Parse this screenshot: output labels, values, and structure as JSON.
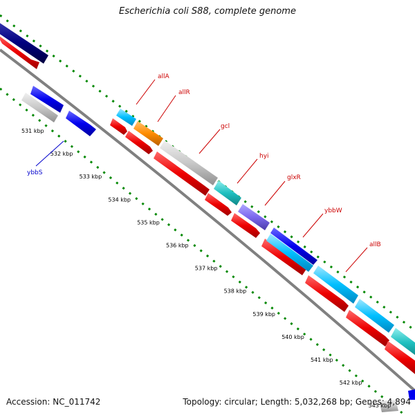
{
  "title": "Escherichia coli S88, complete genome",
  "accession": "Accession: NC_011742",
  "summary": "Topology: circular; Length: 5,032,268 bp; Genes: 4,894",
  "colors": {
    "cds_reverse": "#ee0000",
    "cds_navy": "#000080",
    "cds_blue": "#0000ee",
    "cds_lightblue": "#00bfff",
    "cds_orange": "#ff8c00",
    "cds_grey": "#bdbdbd",
    "cds_teal": "#20c0c0",
    "cds_purple": "#7b68ee",
    "backbone": "#808080",
    "gc_ticks": "#008800",
    "label_red": "#cc0000",
    "label_blue": "#0000cc"
  },
  "kbp_ticks": [
    "531 kbp",
    "532 kbp",
    "533 kbp",
    "534 kbp",
    "535 kbp",
    "536 kbp",
    "537 kbp",
    "538 kbp",
    "539 kbp",
    "540 kbp",
    "541 kbp",
    "542 kbp",
    "543 kbp"
  ],
  "gene_labels": [
    {
      "name": "allA",
      "color": "#cc0000"
    },
    {
      "name": "allR",
      "color": "#cc0000"
    },
    {
      "name": "gcl",
      "color": "#cc0000"
    },
    {
      "name": "hyi",
      "color": "#cc0000"
    },
    {
      "name": "glxR",
      "color": "#cc0000"
    },
    {
      "name": "ybbW",
      "color": "#cc0000"
    },
    {
      "name": "allB",
      "color": "#cc0000"
    },
    {
      "name": "ybbS",
      "color": "#0000cc"
    }
  ]
}
